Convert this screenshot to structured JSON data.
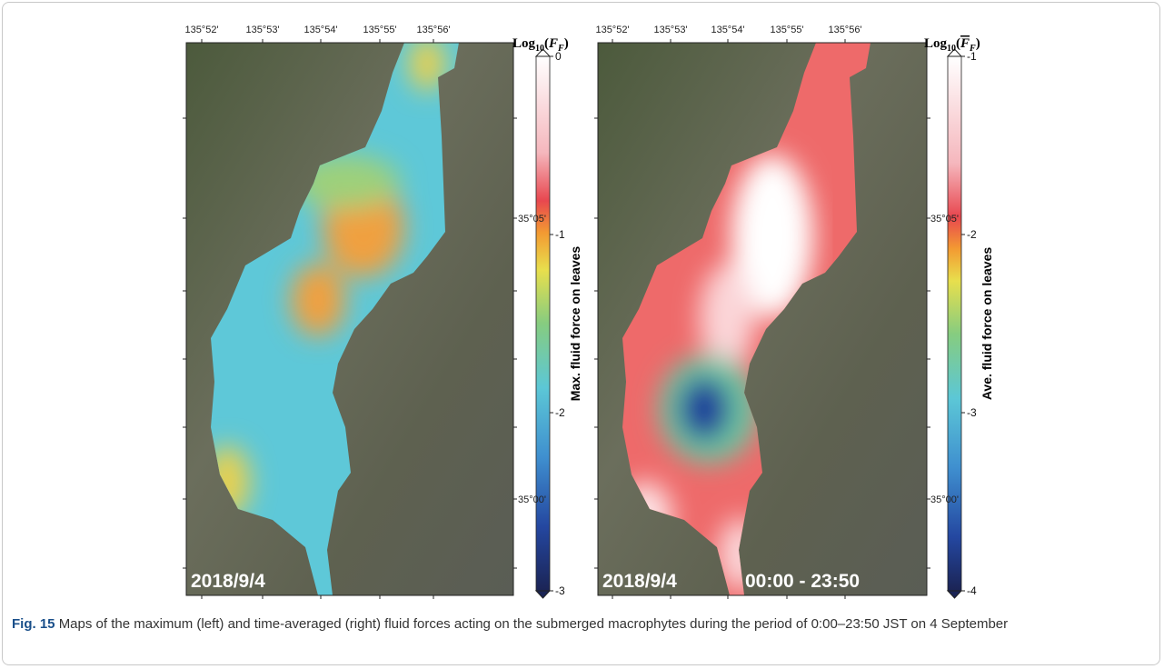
{
  "panels": [
    {
      "top_ticks": [
        "135°52'",
        "135°53'",
        "135°54'",
        "135°55'",
        "135°56'"
      ],
      "date": "2018/9/4",
      "colorbar": {
        "title": {
          "base": "Log",
          "sub": "10",
          "symbol": "F",
          "symbol_sub": "F"
        },
        "label": "Max. fluid force on leaves",
        "ticks": [
          "0",
          "-1",
          "-2",
          "-3"
        ]
      }
    },
    {
      "top_ticks": [
        "135°52'",
        "135°53'",
        "135°54'",
        "135°55'",
        "135°56'"
      ],
      "right_ticks": [
        "35°05'",
        "35°00'"
      ],
      "date": "2018/9/4",
      "period": "00:00 - 23:50",
      "colorbar": {
        "title": {
          "base": "Log",
          "sub": "10",
          "symbol": "F",
          "symbol_sub": "F"
        },
        "label": "Ave. fluid force on leaves",
        "ticks": [
          "-1",
          "-2",
          "-3",
          "-4"
        ]
      }
    }
  ],
  "left_right_ticks": [
    "35°05'",
    "35°00'"
  ],
  "caption": {
    "label": "Fig. 15",
    "text": "Maps of the maximum (left) and time-averaged (right) fluid forces acting on the submerged macrophytes during the period of 0:00–23:50 JST on 4 September"
  }
}
